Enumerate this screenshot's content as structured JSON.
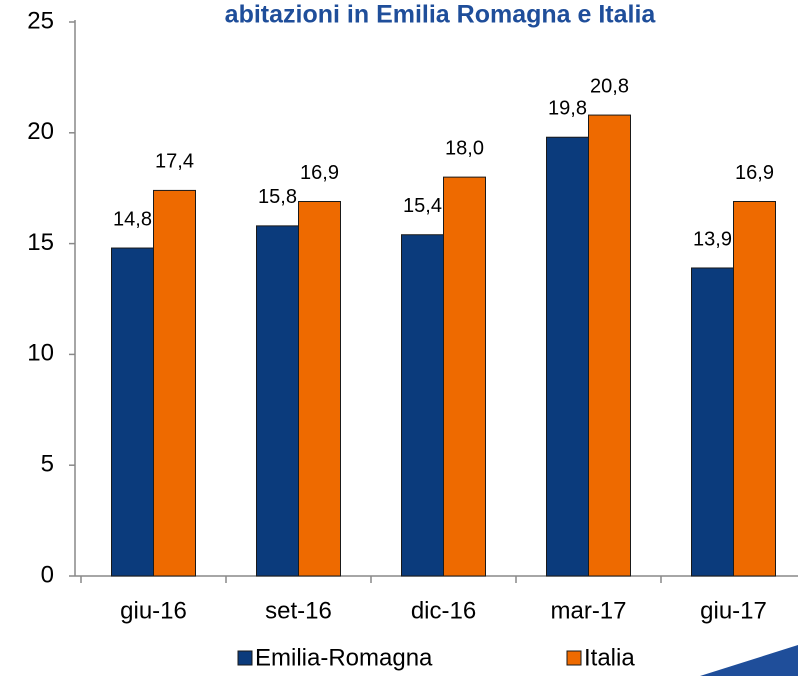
{
  "chart_data": {
    "type": "bar",
    "title": "abitazioni in Emilia Romagna e Italia",
    "categories": [
      "giu-16",
      "set-16",
      "dic-16",
      "mar-17",
      "giu-17"
    ],
    "series": [
      {
        "name": "Emilia-Romagna",
        "color": "#0b3b7c",
        "values": [
          14.8,
          15.8,
          15.4,
          19.8,
          13.9
        ],
        "value_labels": [
          "14,8",
          "15,8",
          "15,4",
          "19,8",
          "13,9"
        ]
      },
      {
        "name": "Italia",
        "color": "#ee6a00",
        "values": [
          17.4,
          16.9,
          18.0,
          20.8,
          16.9
        ],
        "value_labels": [
          "17,4",
          "16,9",
          "18,0",
          "20,8",
          "16,9"
        ]
      }
    ],
    "ylim": [
      0,
      25
    ],
    "yticks": [
      0,
      5,
      10,
      15,
      20,
      25
    ],
    "legend": "bottom"
  }
}
